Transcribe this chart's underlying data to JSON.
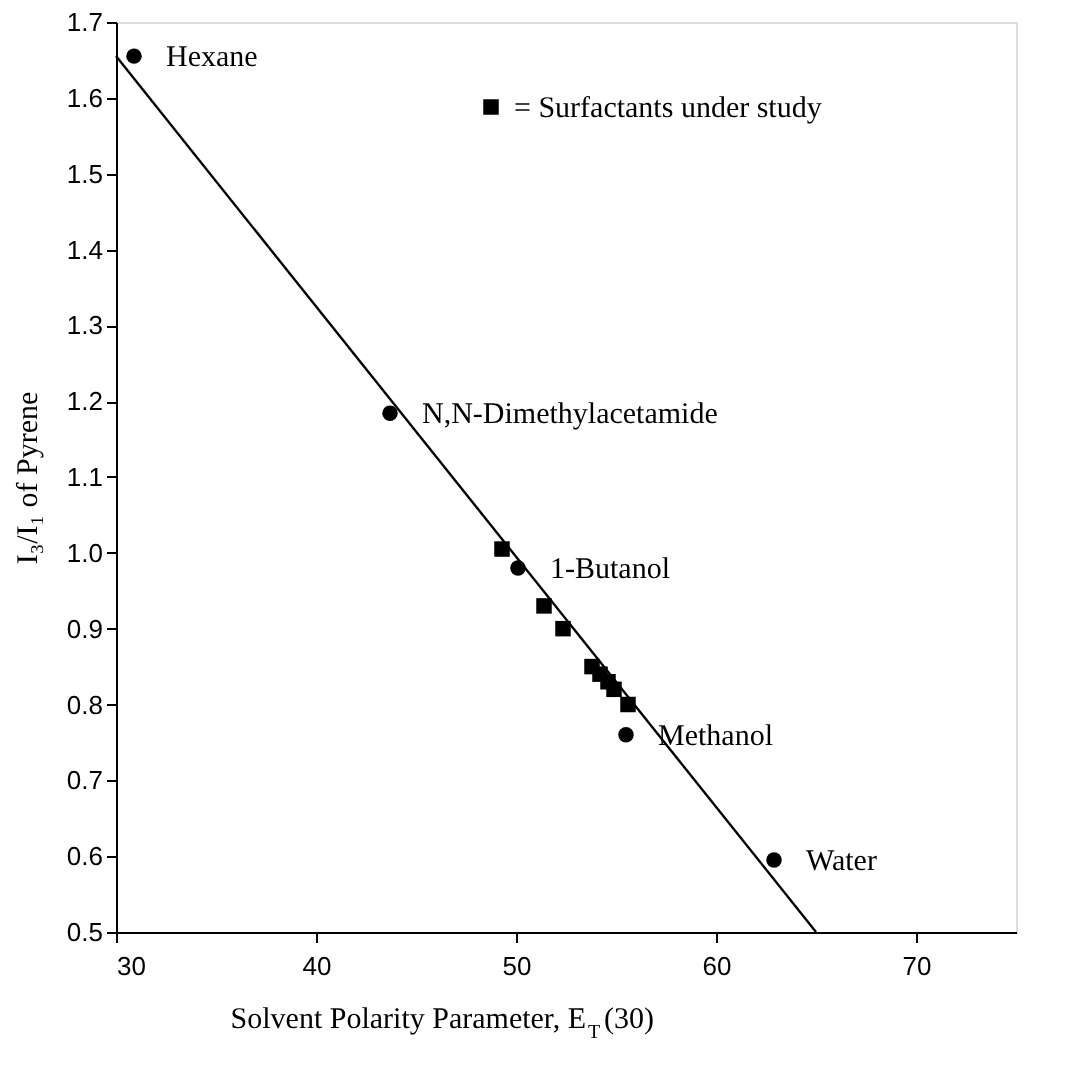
{
  "chart_data": {
    "type": "scatter",
    "xlabel": "Solvent Polarity Parameter, E$_{T}$(30)",
    "ylabel": "I₃/I₁ of Pyrene",
    "series": [
      {
        "color": "#000000",
        "marker": "circle",
        "x": [
          30.9,
          43.7,
          50.1,
          55.5,
          62.9
        ],
        "values": [
          1.655,
          1.184,
          0.98,
          0.76,
          0.595
        ]
      },
      {
        "name": "= Surfactants under study",
        "color": "#000000",
        "marker": "square",
        "x": [
          49.3,
          51.4,
          52.35,
          53.8,
          54.2,
          54.6,
          54.9,
          55.6
        ],
        "values": [
          1.005,
          0.93,
          0.9,
          0.85,
          0.84,
          0.83,
          0.82,
          0.8
        ]
      },
      {
        "type": "line",
        "color": "#000000",
        "marker": "none",
        "x": [
          30,
          65
        ],
        "values": [
          1.655,
          0.5
        ]
      }
    ],
    "annotations": [
      {
        "text": "Hexane",
        "x": 30.9,
        "y": 1.655
      },
      {
        "text": "N,N-Dimethylacetamide",
        "x": 43.7,
        "y": 1.184
      },
      {
        "text": "1-Butanol",
        "x": 50.1,
        "y": 0.98
      },
      {
        "text": "Methanol",
        "x": 55.5,
        "y": 0.76
      },
      {
        "text": "Water",
        "x": 62.9,
        "y": 0.595
      }
    ],
    "xlim": [
      30,
      75
    ],
    "xticks": [
      30,
      40,
      50,
      60,
      70
    ],
    "ylim": [
      0.5,
      1.7
    ],
    "yticks": [
      {
        "value": 0.5,
        "label": "0.5"
      },
      {
        "value": 0.6,
        "label": "0.6"
      },
      {
        "value": 0.7,
        "label": "0.7"
      },
      {
        "value": 0.8,
        "label": "0.8"
      },
      {
        "value": 0.9,
        "label": "0.9"
      },
      {
        "value": 1.0,
        "label": "1.0"
      },
      {
        "value": 1.1,
        "label": "1.1"
      },
      {
        "value": 1.2,
        "label": "1.2"
      },
      {
        "value": 1.3,
        "label": "1.3"
      },
      {
        "value": 1.4,
        "label": "1.4"
      },
      {
        "value": 1.5,
        "label": "1.5"
      },
      {
        "value": 1.6,
        "label": "1.6"
      },
      {
        "value": 1.7,
        "label": "1.7"
      }
    ],
    "grid": false,
    "legend": "top right"
  }
}
